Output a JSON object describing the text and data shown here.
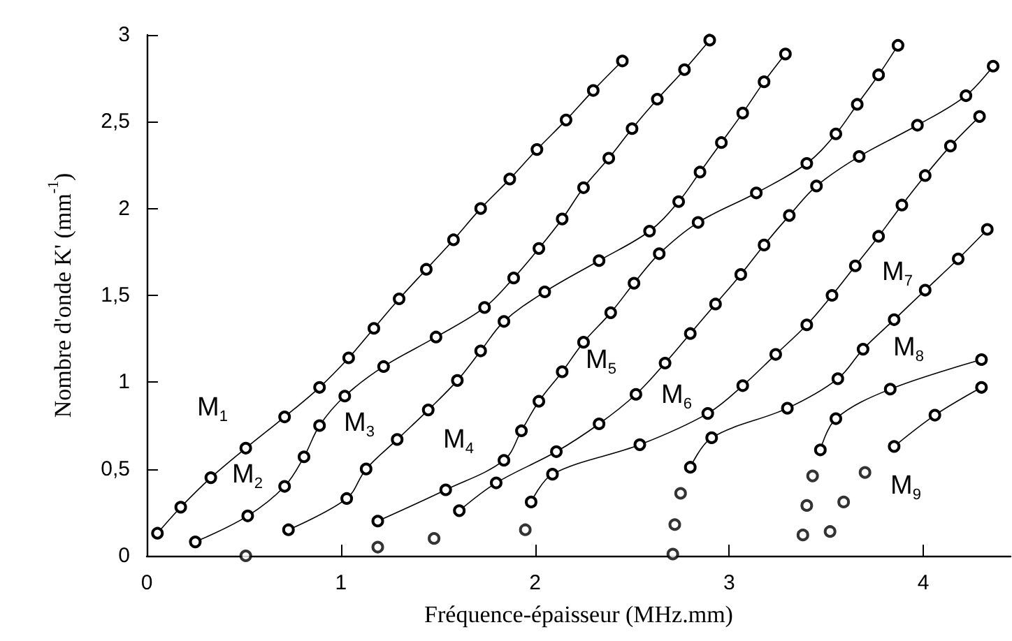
{
  "chart_data": {
    "type": "line",
    "xlabel": "Fréquence-épaisseur (MHz.mm)",
    "ylabel": "Nombre d'onde K' (mm$^{-1}$)",
    "xlim": [
      0,
      4.45
    ],
    "ylim": [
      0,
      3
    ],
    "xticks": [
      0,
      1,
      2,
      3,
      4
    ],
    "yticks": [
      0,
      {
        "value": 0.5,
        "label": "0,5"
      },
      1,
      {
        "value": 1.5,
        "label": "1,5"
      },
      2,
      {
        "value": 2.5,
        "label": "2,5"
      },
      3
    ],
    "grid": false,
    "marker": "circle",
    "line_style": "solid",
    "series": [
      {
        "color": "#000000",
        "x": [
          0.055,
          0.175,
          0.33,
          0.51,
          0.71,
          0.89,
          1.04,
          1.17,
          1.3,
          1.44,
          1.58,
          1.72,
          1.87,
          2.01,
          2.16,
          2.3,
          2.45
        ],
        "values": [
          0.13,
          0.28,
          0.45,
          0.62,
          0.8,
          0.97,
          1.14,
          1.31,
          1.48,
          1.65,
          1.82,
          2.0,
          2.17,
          2.34,
          2.51,
          2.68,
          2.85
        ]
      },
      {
        "color": "#000000",
        "x": [
          0.25,
          0.52,
          0.71,
          0.81,
          0.89,
          1.02,
          1.22,
          1.49,
          1.74,
          1.89,
          2.02,
          2.14,
          2.25,
          2.38,
          2.5,
          2.63,
          2.77,
          2.9
        ],
        "values": [
          0.08,
          0.23,
          0.4,
          0.57,
          0.75,
          0.92,
          1.09,
          1.26,
          1.43,
          1.6,
          1.77,
          1.94,
          2.12,
          2.29,
          2.46,
          2.63,
          2.8,
          2.97
        ]
      },
      {
        "color": "#000000",
        "x": [
          0.73,
          1.03,
          1.13,
          1.29,
          1.45,
          1.6,
          1.72,
          1.84,
          2.05,
          2.33,
          2.59,
          2.74,
          2.85,
          2.96,
          3.07,
          3.18,
          3.29
        ],
        "values": [
          0.15,
          0.33,
          0.5,
          0.67,
          0.84,
          1.01,
          1.18,
          1.35,
          1.52,
          1.7,
          1.87,
          2.04,
          2.21,
          2.38,
          2.55,
          2.73,
          2.89
        ]
      },
      {
        "color": "#000000",
        "x": [
          1.19,
          1.54,
          1.84,
          1.93,
          2.02,
          2.14,
          2.25,
          2.39,
          2.51,
          2.64,
          2.84,
          3.14,
          3.4,
          3.55,
          3.66,
          3.77,
          3.87
        ],
        "values": [
          0.2,
          0.38,
          0.55,
          0.72,
          0.89,
          1.06,
          1.23,
          1.4,
          1.57,
          1.74,
          1.92,
          2.09,
          2.26,
          2.43,
          2.6,
          2.77,
          2.94
        ]
      },
      {
        "color": "#000000",
        "x": [
          1.61,
          1.8,
          2.11,
          2.33,
          2.52,
          2.67,
          2.8,
          2.93,
          3.06,
          3.18,
          3.31,
          3.45,
          3.67,
          3.97,
          4.22,
          4.36
        ],
        "values": [
          0.26,
          0.42,
          0.6,
          0.76,
          0.93,
          1.11,
          1.28,
          1.45,
          1.62,
          1.79,
          1.96,
          2.13,
          2.3,
          2.48,
          2.65,
          2.82
        ]
      },
      {
        "color": "#000000",
        "x": [
          1.98,
          2.09,
          2.54,
          2.89,
          3.07,
          3.24,
          3.4,
          3.53,
          3.65,
          3.77,
          3.89,
          4.01,
          4.14,
          4.29
        ],
        "values": [
          0.31,
          0.47,
          0.64,
          0.82,
          0.98,
          1.16,
          1.33,
          1.5,
          1.67,
          1.84,
          2.02,
          2.19,
          2.36,
          2.53
        ]
      },
      {
        "color": "#000000",
        "x": [
          2.8,
          2.91,
          3.3,
          3.56,
          3.69,
          3.85,
          4.01,
          4.18,
          4.33
        ],
        "values": [
          0.51,
          0.68,
          0.85,
          1.02,
          1.19,
          1.36,
          1.53,
          1.71,
          1.88
        ]
      },
      {
        "color": "#000000",
        "x": [
          3.47,
          3.55,
          3.83,
          4.3
        ],
        "values": [
          0.61,
          0.79,
          0.96,
          1.13
        ]
      },
      {
        "color": "#000000",
        "x": [
          3.85,
          4.06,
          4.3
        ],
        "values": [
          0.63,
          0.81,
          0.97
        ]
      },
      {
        "type": "scatter",
        "color": "#000000",
        "x": [
          0.51,
          1.19,
          1.48,
          1.95,
          2.71,
          2.72,
          2.75,
          3.38,
          3.4,
          3.43,
          3.52,
          3.59,
          3.7
        ],
        "values": [
          0.0,
          0.05,
          0.1,
          0.15,
          0.01,
          0.18,
          0.36,
          0.12,
          0.29,
          0.46,
          0.14,
          0.31,
          0.48
        ]
      }
    ],
    "annotations": [
      "M$_{1}$",
      "M$_{2}$",
      "M$_{3}$",
      "M$_{4}$",
      "M$_{5}$",
      "M$_{6}$",
      "M$_{7}$",
      "M$_{8}$",
      "M$_{9}$"
    ]
  }
}
